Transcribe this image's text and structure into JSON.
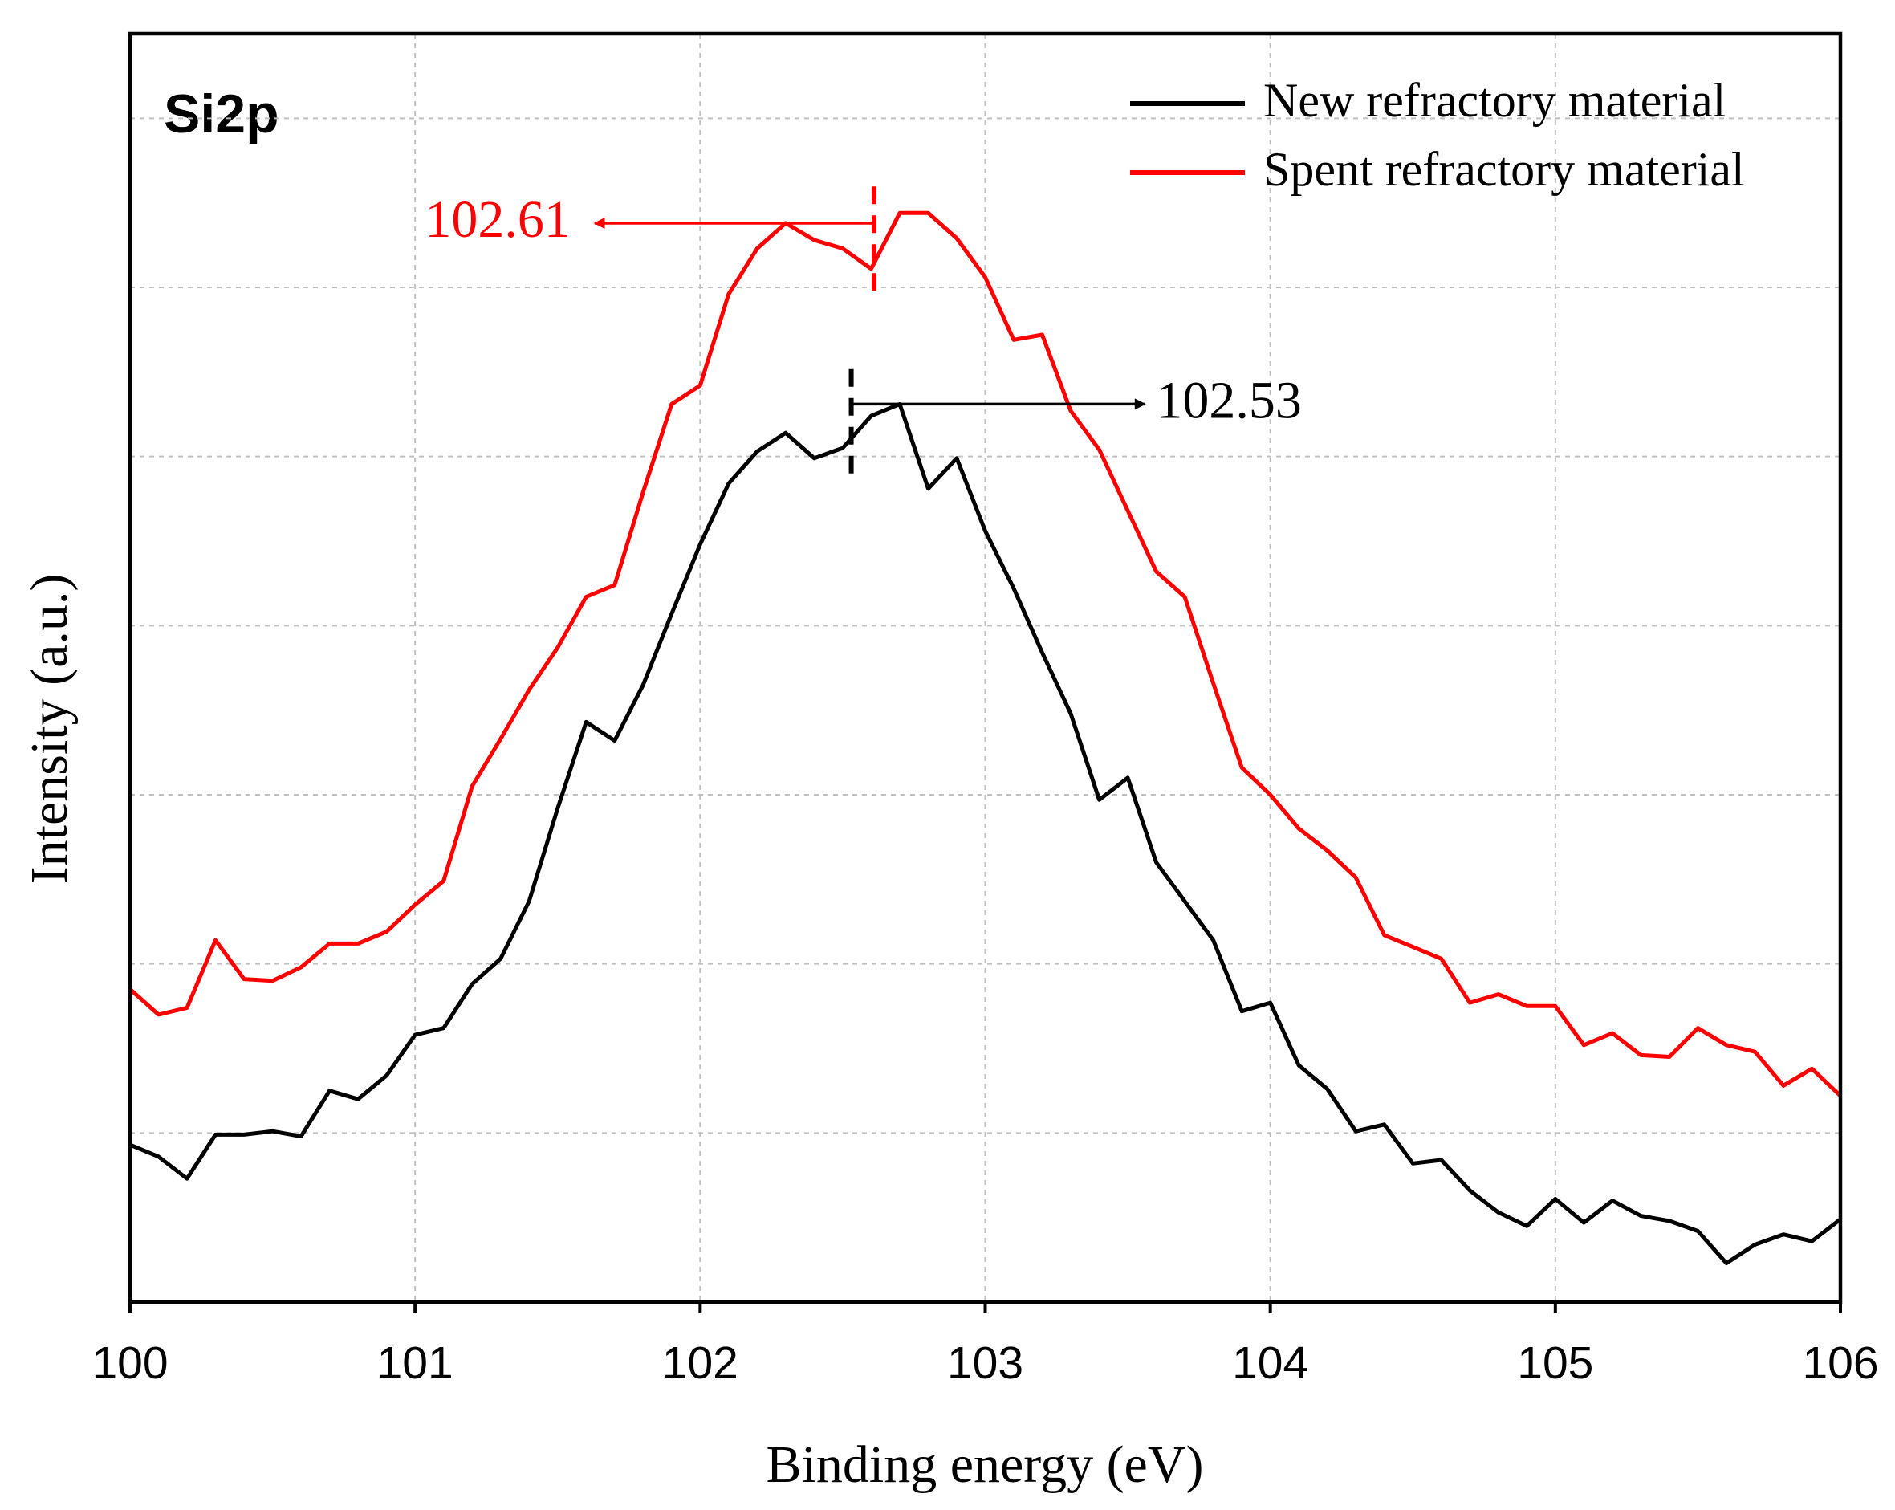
{
  "chart_data": {
    "type": "line",
    "label": "Si2p",
    "xlabel": "Binding energy (eV)",
    "ylabel": "Intensity (a.u.)",
    "x": [
      100.0,
      100.1,
      100.2,
      100.3,
      100.4,
      100.5,
      100.6,
      100.7,
      100.8,
      100.9,
      101.0,
      101.1,
      101.2,
      101.3,
      101.4,
      101.5,
      101.6,
      101.7,
      101.8,
      101.9,
      102.0,
      102.1,
      102.2,
      102.3,
      102.4,
      102.5,
      102.6,
      102.7,
      102.8,
      102.9,
      103.0,
      103.1,
      103.2,
      103.3,
      103.4,
      103.5,
      103.6,
      103.7,
      103.8,
      103.9,
      104.0,
      104.1,
      104.2,
      104.3,
      104.4,
      104.5,
      104.6,
      104.7,
      104.8,
      104.9,
      105.0,
      105.1,
      105.2,
      105.3,
      105.4,
      105.5,
      105.6,
      105.7,
      105.8,
      105.9,
      106.0
    ],
    "series": [
      {
        "name": "New refractory material",
        "color": "#000000",
        "values": [
          0.93,
          0.86,
          0.73,
          0.99,
          0.99,
          1.01,
          0.98,
          1.25,
          1.2,
          1.34,
          1.58,
          1.62,
          1.88,
          2.03,
          2.37,
          2.92,
          3.43,
          3.32,
          3.65,
          4.07,
          4.48,
          4.84,
          5.03,
          5.14,
          4.99,
          5.05,
          5.24,
          5.31,
          4.81,
          4.99,
          4.56,
          4.22,
          3.84,
          3.48,
          2.97,
          3.1,
          2.6,
          2.37,
          2.14,
          1.72,
          1.77,
          1.4,
          1.26,
          1.01,
          1.05,
          0.82,
          0.84,
          0.66,
          0.53,
          0.45,
          0.61,
          0.47,
          0.6,
          0.51,
          0.48,
          0.42,
          0.23,
          0.34,
          0.4,
          0.36,
          0.49
        ]
      },
      {
        "name": "Spent refractory material",
        "color": "#ff0000",
        "values": [
          1.85,
          1.7,
          1.74,
          2.14,
          1.91,
          1.9,
          1.98,
          2.12,
          2.12,
          2.19,
          2.35,
          2.49,
          3.05,
          3.33,
          3.62,
          3.87,
          4.17,
          4.24,
          4.79,
          5.31,
          5.42,
          5.96,
          6.23,
          6.38,
          6.28,
          6.23,
          6.11,
          6.44,
          6.44,
          6.29,
          6.06,
          5.69,
          5.72,
          5.27,
          5.04,
          4.68,
          4.32,
          4.17,
          3.66,
          3.16,
          3.0,
          2.8,
          2.67,
          2.51,
          2.17,
          2.1,
          2.03,
          1.77,
          1.82,
          1.75,
          1.75,
          1.52,
          1.59,
          1.46,
          1.45,
          1.62,
          1.52,
          1.48,
          1.28,
          1.38,
          1.22
        ]
      }
    ],
    "annotations": [
      {
        "label": "102.61",
        "x": 102.61,
        "y": 6.38,
        "arrow_to": 101.63,
        "dash_ylim": [
          5.98,
          6.64
        ],
        "color": "#ff0000"
      },
      {
        "label": "102.53",
        "x": 102.53,
        "y": 5.31,
        "arrow_to": 103.56,
        "dash_ylim": [
          4.9,
          5.57
        ],
        "color": "#000000"
      }
    ],
    "xlim": [
      100,
      106
    ],
    "xticks": [
      100,
      101,
      102,
      103,
      104,
      105,
      106
    ],
    "ylim": [
      0,
      7.5
    ],
    "yticks": [
      1,
      2,
      3,
      4,
      5,
      6,
      7
    ],
    "ytick_labels": false,
    "grid": true,
    "legend": "upper right"
  }
}
